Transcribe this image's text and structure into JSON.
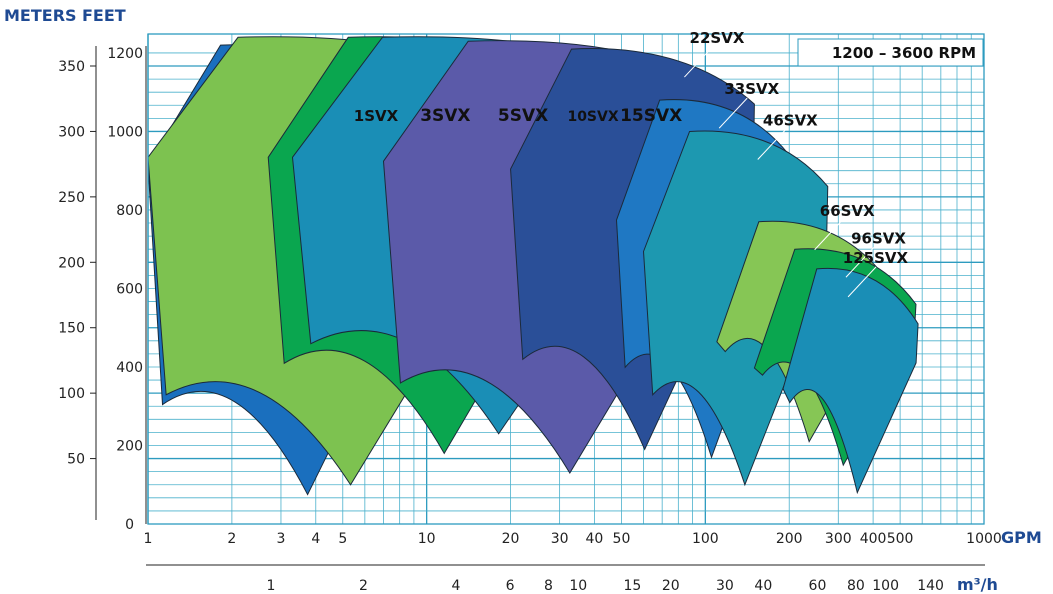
{
  "chart_data": {
    "type": "area",
    "title": "",
    "annotation": "1200 – 3600 RPM",
    "unit_headers": [
      "METERS",
      "FEET"
    ],
    "x_axes": {
      "gpm": {
        "label": "GPM",
        "scale": "log",
        "range": [
          1,
          1000
        ],
        "ticks": [
          "1",
          "2",
          "3",
          "4",
          "5",
          "10",
          "20",
          "30",
          "40",
          "50",
          "100",
          "200",
          "300",
          "400",
          "500",
          "1000"
        ]
      },
      "m3h": {
        "label": "m³/h",
        "scale": "log",
        "ticks": [
          "1",
          "2",
          "4",
          "6",
          "8",
          "10",
          "15",
          "20",
          "30",
          "40",
          "60",
          "80",
          "100",
          "140"
        ]
      }
    },
    "y_axes": {
      "meters": {
        "label": "METERS",
        "range": [
          0,
          363
        ],
        "ticks": [
          "0",
          "50",
          "100",
          "150",
          "200",
          "250",
          "300",
          "350"
        ]
      },
      "feet": {
        "label": "FEET",
        "range": [
          0,
          1200
        ],
        "ticks": [
          "200",
          "400",
          "600",
          "800",
          "1000",
          "1200"
        ]
      }
    },
    "grid": true,
    "series": [
      {
        "name": "1SVX",
        "color": "#1a6fbe",
        "q_min_gpm": 1.0,
        "q_max_gpm": 11,
        "h_max_ft": 1220,
        "h_min_ft": 75
      },
      {
        "name": "3SVX",
        "color": "#7dc250",
        "q_min_gpm": 1.0,
        "q_max_gpm": 20,
        "h_max_ft": 1240,
        "h_min_ft": 100
      },
      {
        "name": "5SVX",
        "color": "#0aa64f",
        "q_min_gpm": 2.7,
        "q_max_gpm": 38,
        "h_max_ft": 1240,
        "h_min_ft": 180
      },
      {
        "name": "10SVX",
        "color": "#1a8eb6",
        "q_min_gpm": 3.3,
        "q_max_gpm": 68,
        "h_max_ft": 1240,
        "h_min_ft": 230
      },
      {
        "name": "15SVX",
        "color": "#5b5aa9",
        "q_min_gpm": 7.0,
        "q_max_gpm": 115,
        "h_max_ft": 1230,
        "h_min_ft": 130
      },
      {
        "name": "22SVX",
        "color": "#2a4f98",
        "q_min_gpm": 20,
        "q_max_gpm": 150,
        "h_max_ft": 1210,
        "h_min_ft": 190
      },
      {
        "name": "33SVX",
        "color": "#1f78c3",
        "q_min_gpm": 48,
        "q_max_gpm": 200,
        "h_max_ft": 1080,
        "h_min_ft": 170
      },
      {
        "name": "46SVX",
        "color": "#1d98b0",
        "q_min_gpm": 60,
        "q_max_gpm": 275,
        "h_max_ft": 1000,
        "h_min_ft": 100
      },
      {
        "name": "66SVX",
        "color": "#86c655",
        "q_min_gpm": 110,
        "q_max_gpm": 440,
        "h_max_ft": 770,
        "h_min_ft": 210
      },
      {
        "name": "96SVX",
        "color": "#0aa64f",
        "q_min_gpm": 150,
        "q_max_gpm": 570,
        "h_max_ft": 700,
        "h_min_ft": 150
      },
      {
        "name": "125SVX",
        "color": "#1a8eb6",
        "q_min_gpm": 190,
        "q_max_gpm": 580,
        "h_max_ft": 650,
        "h_min_ft": 80
      }
    ]
  }
}
